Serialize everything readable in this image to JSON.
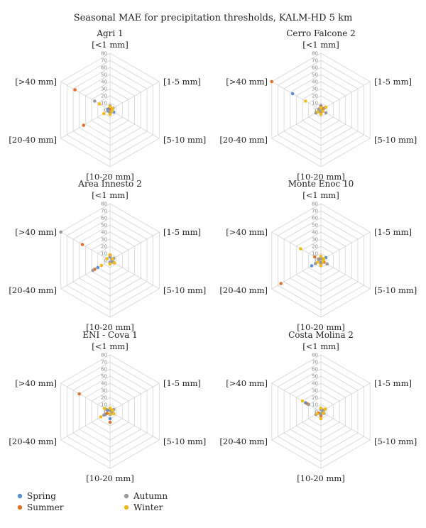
{
  "figure_title": "Seasonal MAE for precipitation thresholds, KALM-HD 5 km",
  "colors": {
    "Spring": "#5b8fd4",
    "Summer": "#e0722a",
    "Autumn": "#9a9a9a",
    "Winter": "#f1bc1b",
    "grid": "#d4d4d4"
  },
  "legend": [
    "Spring",
    "Summer",
    "Autumn",
    "Winter"
  ],
  "chart_data": [
    {
      "type": "radar",
      "title": "Agri 1",
      "categories": [
        "[<1 mm]",
        "[1-5 mm]",
        "[5-10 mm]",
        "[10-20 mm]",
        "[20-40 mm]",
        "[>40 mm]"
      ],
      "rlim": [
        0,
        80
      ],
      "ticks": [
        0,
        10,
        20,
        30,
        40,
        50,
        60,
        70,
        80
      ],
      "series": [
        {
          "name": "Spring",
          "values": [
            2,
            4,
            6,
            4,
            3,
            3
          ]
        },
        {
          "name": "Summer",
          "values": [
            3,
            3,
            3,
            5,
            43,
            57
          ]
        },
        {
          "name": "Autumn",
          "values": [
            6,
            5,
            4,
            3,
            2,
            25
          ]
        },
        {
          "name": "Winter",
          "values": [
            5,
            4,
            3,
            6,
            10,
            17
          ]
        }
      ]
    },
    {
      "type": "radar",
      "title": "Cerro Falcone 2",
      "categories": [
        "[<1 mm]",
        "[1-5 mm]",
        "[5-10 mm]",
        "[10-20 mm]",
        "[20-40 mm]",
        "[>40 mm]"
      ],
      "rlim": [
        0,
        80
      ],
      "ticks": [
        0,
        10,
        20,
        30,
        40,
        50,
        60,
        70,
        80
      ],
      "series": [
        {
          "name": "Spring",
          "values": [
            6,
            3,
            2,
            6,
            4,
            46
          ]
        },
        {
          "name": "Summer",
          "values": [
            5,
            4,
            3,
            4,
            8,
            81
          ]
        },
        {
          "name": "Autumn",
          "values": [
            4,
            6,
            8,
            3,
            8,
            3
          ]
        },
        {
          "name": "Winter",
          "values": [
            3,
            8,
            3,
            6,
            5,
            25
          ]
        }
      ]
    },
    {
      "type": "radar",
      "title": "Area Innesto 2",
      "categories": [
        "[<1 mm]",
        "[1-5 mm]",
        "[5-10 mm]",
        "[10-20 mm]",
        "[20-40 mm]",
        "[>40 mm]"
      ],
      "rlim": [
        0,
        80
      ],
      "ticks": [
        0,
        10,
        20,
        30,
        40,
        50,
        60,
        70,
        80
      ],
      "series": [
        {
          "name": "Spring",
          "values": [
            5,
            3,
            4,
            3,
            20,
            5
          ]
        },
        {
          "name": "Summer",
          "values": [
            7,
            5,
            6,
            4,
            25,
            45
          ]
        },
        {
          "name": "Autumn",
          "values": [
            6,
            6,
            5,
            3,
            28,
            80
          ]
        },
        {
          "name": "Winter",
          "values": [
            8,
            4,
            7,
            5,
            14,
            5
          ]
        }
      ]
    },
    {
      "type": "radar",
      "title": "Monte Enoc 10",
      "categories": [
        "[<1 mm]",
        "[1-5 mm]",
        "[5-10 mm]",
        "[10-20 mm]",
        "[20-40 mm]",
        "[>40 mm]"
      ],
      "rlim": [
        0,
        80
      ],
      "ticks": [
        0,
        10,
        20,
        30,
        40,
        50,
        60,
        70,
        80
      ],
      "series": [
        {
          "name": "Spring",
          "values": [
            5,
            8,
            4,
            3,
            15,
            3
          ]
        },
        {
          "name": "Summer",
          "values": [
            3,
            4,
            5,
            6,
            65,
            10
          ]
        },
        {
          "name": "Autumn",
          "values": [
            4,
            3,
            10,
            5,
            9,
            4
          ]
        },
        {
          "name": "Winter",
          "values": [
            6,
            5,
            3,
            7,
            5,
            33
          ]
        }
      ]
    },
    {
      "type": "radar",
      "title": "ENI - Cova 1",
      "categories": [
        "[<1 mm]",
        "[1-5 mm]",
        "[5-10 mm]",
        "[10-20 mm]",
        "[20-40 mm]",
        "[>40 mm]"
      ],
      "rlim": [
        0,
        80
      ],
      "ticks": [
        0,
        10,
        20,
        30,
        40,
        50,
        60,
        70,
        80
      ],
      "series": [
        {
          "name": "Spring",
          "values": [
            3,
            5,
            5,
            10,
            8,
            4
          ]
        },
        {
          "name": "Summer",
          "values": [
            4,
            3,
            3,
            15,
            5,
            50
          ]
        },
        {
          "name": "Autumn",
          "values": [
            2,
            6,
            3,
            4,
            10,
            6
          ]
        },
        {
          "name": "Winter",
          "values": [
            5,
            4,
            6,
            3,
            15,
            9
          ]
        }
      ]
    },
    {
      "type": "radar",
      "title": "Costa Molina 2",
      "categories": [
        "[<1 mm]",
        "[1-5 mm]",
        "[5-10 mm]",
        "[10-20 mm]",
        "[20-40 mm]",
        "[>40 mm]"
      ],
      "rlim": [
        0,
        80
      ],
      "ticks": [
        0,
        10,
        20,
        30,
        40,
        50,
        60,
        70,
        80
      ],
      "series": [
        {
          "name": "Spring",
          "values": [
            4,
            3,
            3,
            4,
            5,
            25
          ]
        },
        {
          "name": "Summer",
          "values": [
            4,
            5,
            4,
            6,
            4,
            22
          ]
        },
        {
          "name": "Autumn",
          "values": [
            3,
            4,
            5,
            3,
            8,
            20
          ]
        },
        {
          "name": "Winter",
          "values": [
            5,
            7,
            4,
            10,
            6,
            30
          ]
        }
      ]
    }
  ]
}
